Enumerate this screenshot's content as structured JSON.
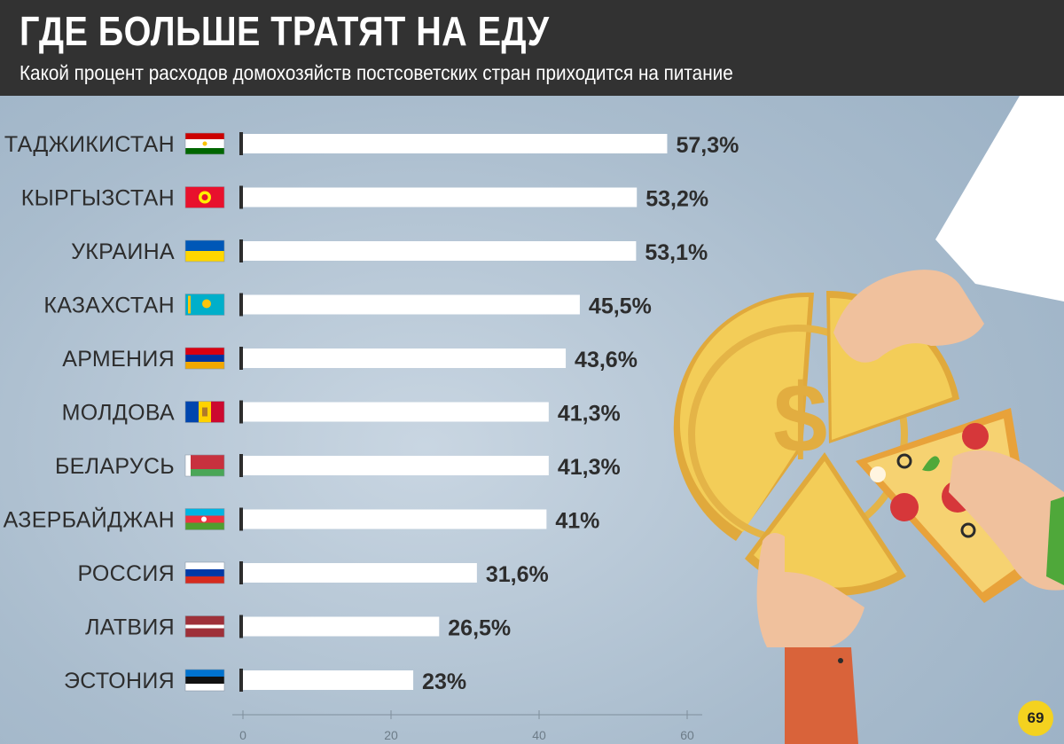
{
  "header": {
    "title": "ГДЕ БОЛЬШЕ ТРАТЯТ НА ЕДУ",
    "subtitle": "Какой процент расходов домохозяйств постсоветских стран приходится на питание"
  },
  "chart_data": {
    "type": "bar",
    "orientation": "horizontal",
    "title": "ГДЕ БОЛЬШЕ ТРАТЯТ НА ЕДУ",
    "subtitle": "Какой процент расходов домохозяйств постсоветских стран приходится на питание",
    "xlim": [
      0,
      60
    ],
    "xticks": [
      "0",
      "20",
      "40",
      "60"
    ],
    "categories": [
      "ТАДЖИКИСТАН",
      "КЫРГЫЗСТАН",
      "УКРАИНА",
      "КАЗАХСТАН",
      "АРМЕНИЯ",
      "МОЛДОВА",
      "БЕЛАРУСЬ",
      "АЗЕРБАЙДЖАН",
      "РОССИЯ",
      "ЛАТВИЯ",
      "ЭСТОНИЯ"
    ],
    "values": [
      57.3,
      53.2,
      53.1,
      45.5,
      43.6,
      41.3,
      41.3,
      41,
      31.6,
      26.5,
      23
    ],
    "value_labels": [
      "57,3%",
      "53,2%",
      "53,1%",
      "45,5%",
      "43,6%",
      "41,3%",
      "41,3%",
      "41%",
      "31,6%",
      "26,5%",
      "23%"
    ],
    "flags": [
      "tajikistan-flag",
      "kyrgyzstan-flag",
      "ukraine-flag",
      "kazakhstan-flag",
      "armenia-flag",
      "moldova-flag",
      "belarus-flag",
      "azerbaijan-flag",
      "russia-flag",
      "latvia-flag",
      "estonia-flag"
    ],
    "bar_color": "#ffffff",
    "grid": false
  },
  "logo": {
    "text": "69"
  }
}
